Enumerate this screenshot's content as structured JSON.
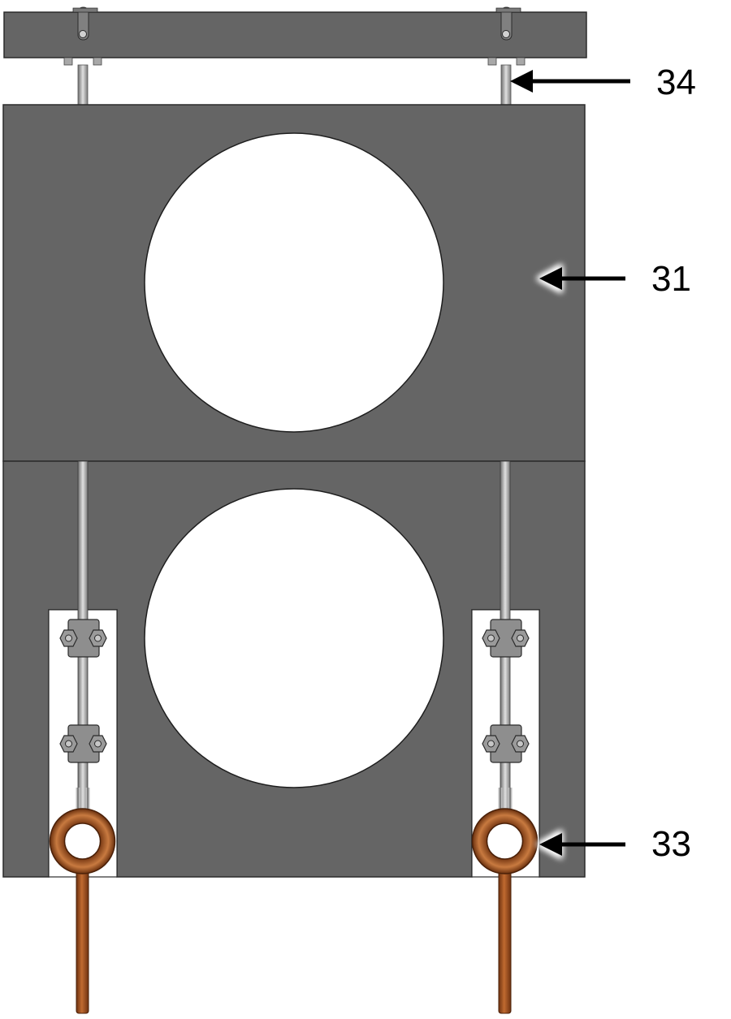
{
  "callouts": {
    "c34": {
      "label": "34"
    },
    "c31": {
      "label": "31"
    },
    "c33": {
      "label": "33"
    }
  },
  "colors": {
    "plate": "#656565",
    "plate_edge": "#2b2b2b",
    "rod": "#9a9a9a",
    "clamp": "#8c8c8c",
    "slot": "#ffffff",
    "eye_bolt": "#a0521c",
    "arrow": "#000000"
  }
}
